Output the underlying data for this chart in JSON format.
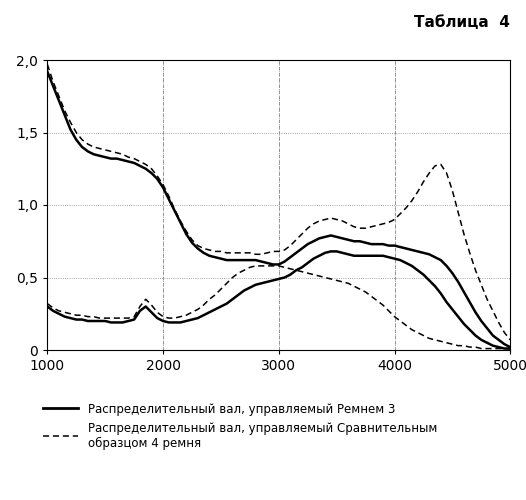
{
  "title": "Таблица  4",
  "xlim": [
    1000,
    5000
  ],
  "ylim": [
    0,
    2.0
  ],
  "xticks": [
    1000,
    2000,
    3000,
    4000,
    5000
  ],
  "yticks": [
    0,
    0.5,
    1.0,
    1.5,
    2.0
  ],
  "ytick_labels": [
    "0",
    "0,5",
    "1,0",
    "1,5",
    "2,0"
  ],
  "legend1": "Распределительный вал, управляемый Ремнем 3",
  "legend2": "Распределительный вал, управляемый Сравнительным\nобразцом 4 ремня",
  "solid_upper_x": [
    1000,
    1050,
    1100,
    1150,
    1200,
    1250,
    1300,
    1350,
    1400,
    1450,
    1500,
    1550,
    1600,
    1650,
    1700,
    1750,
    1800,
    1850,
    1900,
    1950,
    2000,
    2050,
    2100,
    2150,
    2200,
    2250,
    2300,
    2350,
    2400,
    2450,
    2500,
    2550,
    2600,
    2650,
    2700,
    2750,
    2800,
    2850,
    2900,
    2950,
    3000,
    3050,
    3100,
    3150,
    3200,
    3250,
    3300,
    3350,
    3400,
    3450,
    3500,
    3550,
    3600,
    3650,
    3700,
    3750,
    3800,
    3850,
    3900,
    3950,
    4000,
    4050,
    4100,
    4150,
    4200,
    4250,
    4300,
    4350,
    4400,
    4450,
    4500,
    4550,
    4600,
    4650,
    4700,
    4750,
    4800,
    4850,
    4900,
    4950,
    5000
  ],
  "solid_upper_y": [
    1.92,
    1.82,
    1.72,
    1.62,
    1.52,
    1.45,
    1.4,
    1.37,
    1.35,
    1.34,
    1.33,
    1.32,
    1.32,
    1.31,
    1.3,
    1.29,
    1.27,
    1.25,
    1.22,
    1.18,
    1.12,
    1.04,
    0.96,
    0.88,
    0.8,
    0.74,
    0.7,
    0.67,
    0.65,
    0.64,
    0.63,
    0.62,
    0.62,
    0.62,
    0.62,
    0.62,
    0.62,
    0.61,
    0.6,
    0.59,
    0.59,
    0.61,
    0.64,
    0.67,
    0.7,
    0.73,
    0.75,
    0.77,
    0.78,
    0.79,
    0.78,
    0.77,
    0.76,
    0.75,
    0.75,
    0.74,
    0.73,
    0.73,
    0.73,
    0.72,
    0.72,
    0.71,
    0.7,
    0.69,
    0.68,
    0.67,
    0.66,
    0.64,
    0.62,
    0.58,
    0.53,
    0.47,
    0.4,
    0.33,
    0.26,
    0.2,
    0.15,
    0.1,
    0.07,
    0.04,
    0.02
  ],
  "solid_lower_x": [
    1000,
    1050,
    1100,
    1150,
    1200,
    1250,
    1300,
    1350,
    1400,
    1450,
    1500,
    1550,
    1600,
    1650,
    1700,
    1750,
    1800,
    1850,
    1900,
    1950,
    2000,
    2050,
    2100,
    2150,
    2200,
    2250,
    2300,
    2350,
    2400,
    2450,
    2500,
    2550,
    2600,
    2650,
    2700,
    2750,
    2800,
    2850,
    2900,
    2950,
    3000,
    3050,
    3100,
    3150,
    3200,
    3250,
    3300,
    3350,
    3400,
    3450,
    3500,
    3550,
    3600,
    3650,
    3700,
    3750,
    3800,
    3850,
    3900,
    3950,
    4000,
    4050,
    4100,
    4150,
    4200,
    4250,
    4300,
    4350,
    4400,
    4450,
    4500,
    4550,
    4600,
    4650,
    4700,
    4750,
    4800,
    4850,
    4900,
    4950,
    5000
  ],
  "solid_lower_y": [
    0.3,
    0.27,
    0.25,
    0.23,
    0.22,
    0.21,
    0.21,
    0.2,
    0.2,
    0.2,
    0.2,
    0.19,
    0.19,
    0.19,
    0.2,
    0.21,
    0.27,
    0.3,
    0.26,
    0.22,
    0.2,
    0.19,
    0.19,
    0.19,
    0.2,
    0.21,
    0.22,
    0.24,
    0.26,
    0.28,
    0.3,
    0.32,
    0.35,
    0.38,
    0.41,
    0.43,
    0.45,
    0.46,
    0.47,
    0.48,
    0.49,
    0.5,
    0.52,
    0.55,
    0.57,
    0.6,
    0.63,
    0.65,
    0.67,
    0.68,
    0.68,
    0.67,
    0.66,
    0.65,
    0.65,
    0.65,
    0.65,
    0.65,
    0.65,
    0.64,
    0.63,
    0.62,
    0.6,
    0.58,
    0.55,
    0.52,
    0.48,
    0.44,
    0.39,
    0.33,
    0.28,
    0.23,
    0.18,
    0.14,
    0.1,
    0.07,
    0.05,
    0.03,
    0.02,
    0.01,
    0.01
  ],
  "dashed_upper_x": [
    1000,
    1050,
    1100,
    1150,
    1200,
    1250,
    1300,
    1350,
    1400,
    1450,
    1500,
    1550,
    1600,
    1650,
    1700,
    1750,
    1800,
    1850,
    1900,
    1950,
    2000,
    2050,
    2100,
    2150,
    2200,
    2250,
    2300,
    2350,
    2400,
    2450,
    2500,
    2550,
    2600,
    2650,
    2700,
    2750,
    2800,
    2850,
    2900,
    2950,
    3000,
    3050,
    3100,
    3150,
    3200,
    3250,
    3300,
    3350,
    3400,
    3450,
    3500,
    3550,
    3600,
    3650,
    3700,
    3750,
    3800,
    3850,
    3900,
    3950,
    4000,
    4050,
    4100,
    4150,
    4200,
    4250,
    4300,
    4350,
    4400,
    4450,
    4500,
    4550,
    4600,
    4650,
    4700,
    4750,
    4800,
    4850,
    4900,
    4950,
    5000
  ],
  "dashed_upper_y": [
    1.97,
    1.85,
    1.75,
    1.65,
    1.57,
    1.5,
    1.45,
    1.42,
    1.4,
    1.39,
    1.38,
    1.37,
    1.36,
    1.35,
    1.33,
    1.32,
    1.3,
    1.28,
    1.25,
    1.2,
    1.14,
    1.06,
    0.97,
    0.89,
    0.82,
    0.76,
    0.72,
    0.7,
    0.69,
    0.68,
    0.68,
    0.67,
    0.67,
    0.67,
    0.67,
    0.67,
    0.66,
    0.66,
    0.67,
    0.68,
    0.68,
    0.69,
    0.72,
    0.76,
    0.8,
    0.84,
    0.87,
    0.89,
    0.9,
    0.91,
    0.9,
    0.89,
    0.87,
    0.85,
    0.84,
    0.84,
    0.85,
    0.86,
    0.87,
    0.88,
    0.9,
    0.94,
    0.98,
    1.03,
    1.09,
    1.16,
    1.22,
    1.27,
    1.28,
    1.22,
    1.1,
    0.95,
    0.8,
    0.67,
    0.55,
    0.45,
    0.35,
    0.27,
    0.19,
    0.12,
    0.07
  ],
  "dashed_lower_x": [
    1000,
    1050,
    1100,
    1150,
    1200,
    1250,
    1300,
    1350,
    1400,
    1450,
    1500,
    1550,
    1600,
    1650,
    1700,
    1750,
    1800,
    1850,
    1900,
    1950,
    2000,
    2050,
    2100,
    2150,
    2200,
    2250,
    2300,
    2350,
    2400,
    2450,
    2500,
    2550,
    2600,
    2650,
    2700,
    2750,
    2800,
    2850,
    2900,
    2950,
    3000,
    3050,
    3100,
    3150,
    3200,
    3250,
    3300,
    3350,
    3400,
    3450,
    3500,
    3550,
    3600,
    3650,
    3700,
    3750,
    3800,
    3850,
    3900,
    3950,
    4000,
    4050,
    4100,
    4150,
    4200,
    4250,
    4300,
    4350,
    4400,
    4450,
    4500,
    4550,
    4600,
    4650,
    4700,
    4750,
    4800,
    4850,
    4900,
    4950,
    5000
  ],
  "dashed_lower_y": [
    0.32,
    0.29,
    0.27,
    0.26,
    0.25,
    0.24,
    0.24,
    0.23,
    0.23,
    0.22,
    0.22,
    0.22,
    0.22,
    0.22,
    0.22,
    0.23,
    0.3,
    0.35,
    0.31,
    0.26,
    0.23,
    0.22,
    0.22,
    0.23,
    0.24,
    0.26,
    0.28,
    0.31,
    0.35,
    0.38,
    0.42,
    0.46,
    0.5,
    0.53,
    0.55,
    0.57,
    0.58,
    0.58,
    0.58,
    0.58,
    0.58,
    0.57,
    0.56,
    0.55,
    0.54,
    0.53,
    0.52,
    0.51,
    0.5,
    0.49,
    0.48,
    0.47,
    0.46,
    0.44,
    0.42,
    0.4,
    0.37,
    0.34,
    0.31,
    0.27,
    0.23,
    0.2,
    0.17,
    0.14,
    0.12,
    0.1,
    0.08,
    0.07,
    0.06,
    0.05,
    0.04,
    0.03,
    0.03,
    0.02,
    0.02,
    0.01,
    0.01,
    0.01,
    0.01,
    0.01,
    0.01
  ],
  "grid_color": "#888888"
}
